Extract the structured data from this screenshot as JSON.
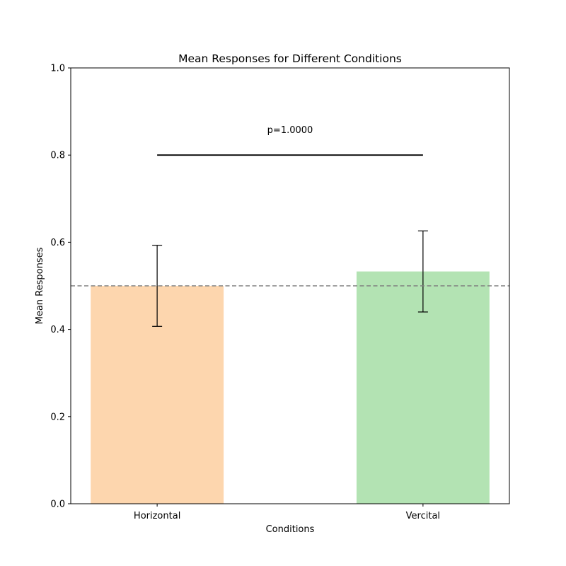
{
  "chart_data": {
    "type": "bar",
    "title": "Mean Responses for Different Conditions",
    "xlabel": "Conditions",
    "ylabel": "Mean Responses",
    "categories": [
      "Horizontal",
      "Vercital"
    ],
    "values": [
      0.5,
      0.533
    ],
    "errors": [
      0.093,
      0.093
    ],
    "bar_colors": [
      "#fdd6ae",
      "#b3e3b3"
    ],
    "ylim": [
      0,
      1.0
    ],
    "yticks": [
      0.0,
      0.2,
      0.4,
      0.6,
      0.8,
      1.0
    ],
    "ytick_labels": [
      "0.0",
      "0.2",
      "0.4",
      "0.6",
      "0.8",
      "1.0"
    ],
    "reference_line": {
      "y": 0.5,
      "style": "dashed",
      "color": "#808080"
    },
    "significance": {
      "y": 0.8,
      "from": "Horizontal",
      "to": "Vercital",
      "label": "p=1.0000"
    },
    "grid": false,
    "legend": "none"
  }
}
